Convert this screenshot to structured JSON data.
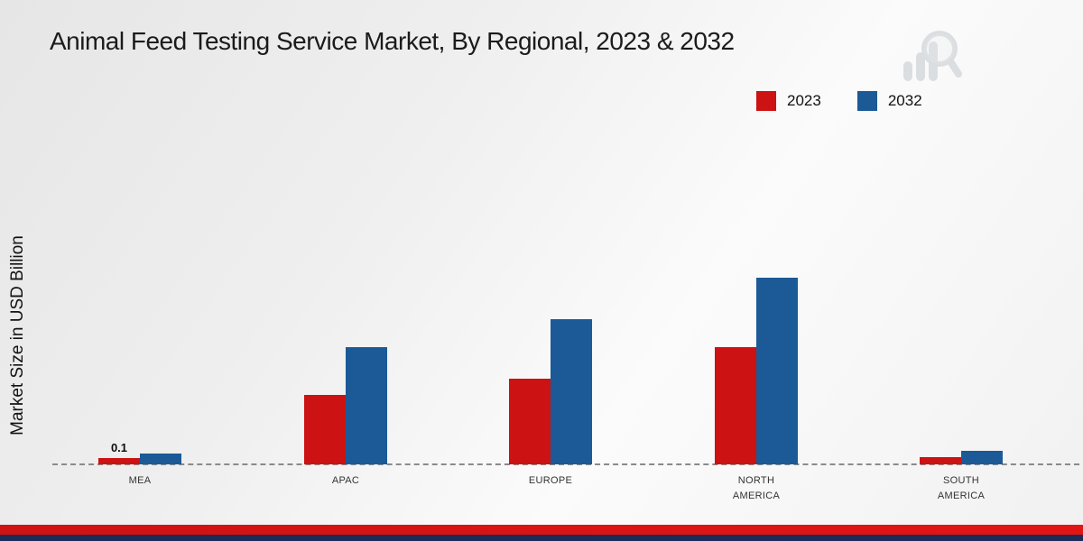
{
  "title": "Animal Feed Testing Service Market, By Regional, 2023 & 2032",
  "ylabel": "Market Size in USD Billion",
  "legend": [
    {
      "label": "2023",
      "color": "#cc1212"
    },
    {
      "label": "2032",
      "color": "#1b5a96"
    }
  ],
  "footer": {
    "bar_top_color": "#cf1212",
    "bar_bottom_color": "#1c2b57"
  },
  "chart_data": {
    "type": "bar",
    "title": "Animal Feed Testing Service Market, By Regional, 2023 & 2032",
    "xlabel": "",
    "ylabel": "Market Size in USD Billion",
    "categories": [
      "MEA",
      "APAC",
      "EUROPE",
      "NORTH AMERICA",
      "SOUTH AMERICA"
    ],
    "series": [
      {
        "name": "2023",
        "color": "#cc1212",
        "values": [
          0.1,
          1.1,
          1.35,
          1.85,
          0.12
        ]
      },
      {
        "name": "2032",
        "color": "#1b5a96",
        "values": [
          0.17,
          1.85,
          2.3,
          2.95,
          0.22
        ]
      }
    ],
    "annotations": [
      {
        "category": "MEA",
        "series": "2023",
        "text": "0.1"
      }
    ],
    "ylim": [
      0,
      3.5
    ],
    "grid": false,
    "baseline_style": "dashed",
    "legend_position": "top-right"
  }
}
